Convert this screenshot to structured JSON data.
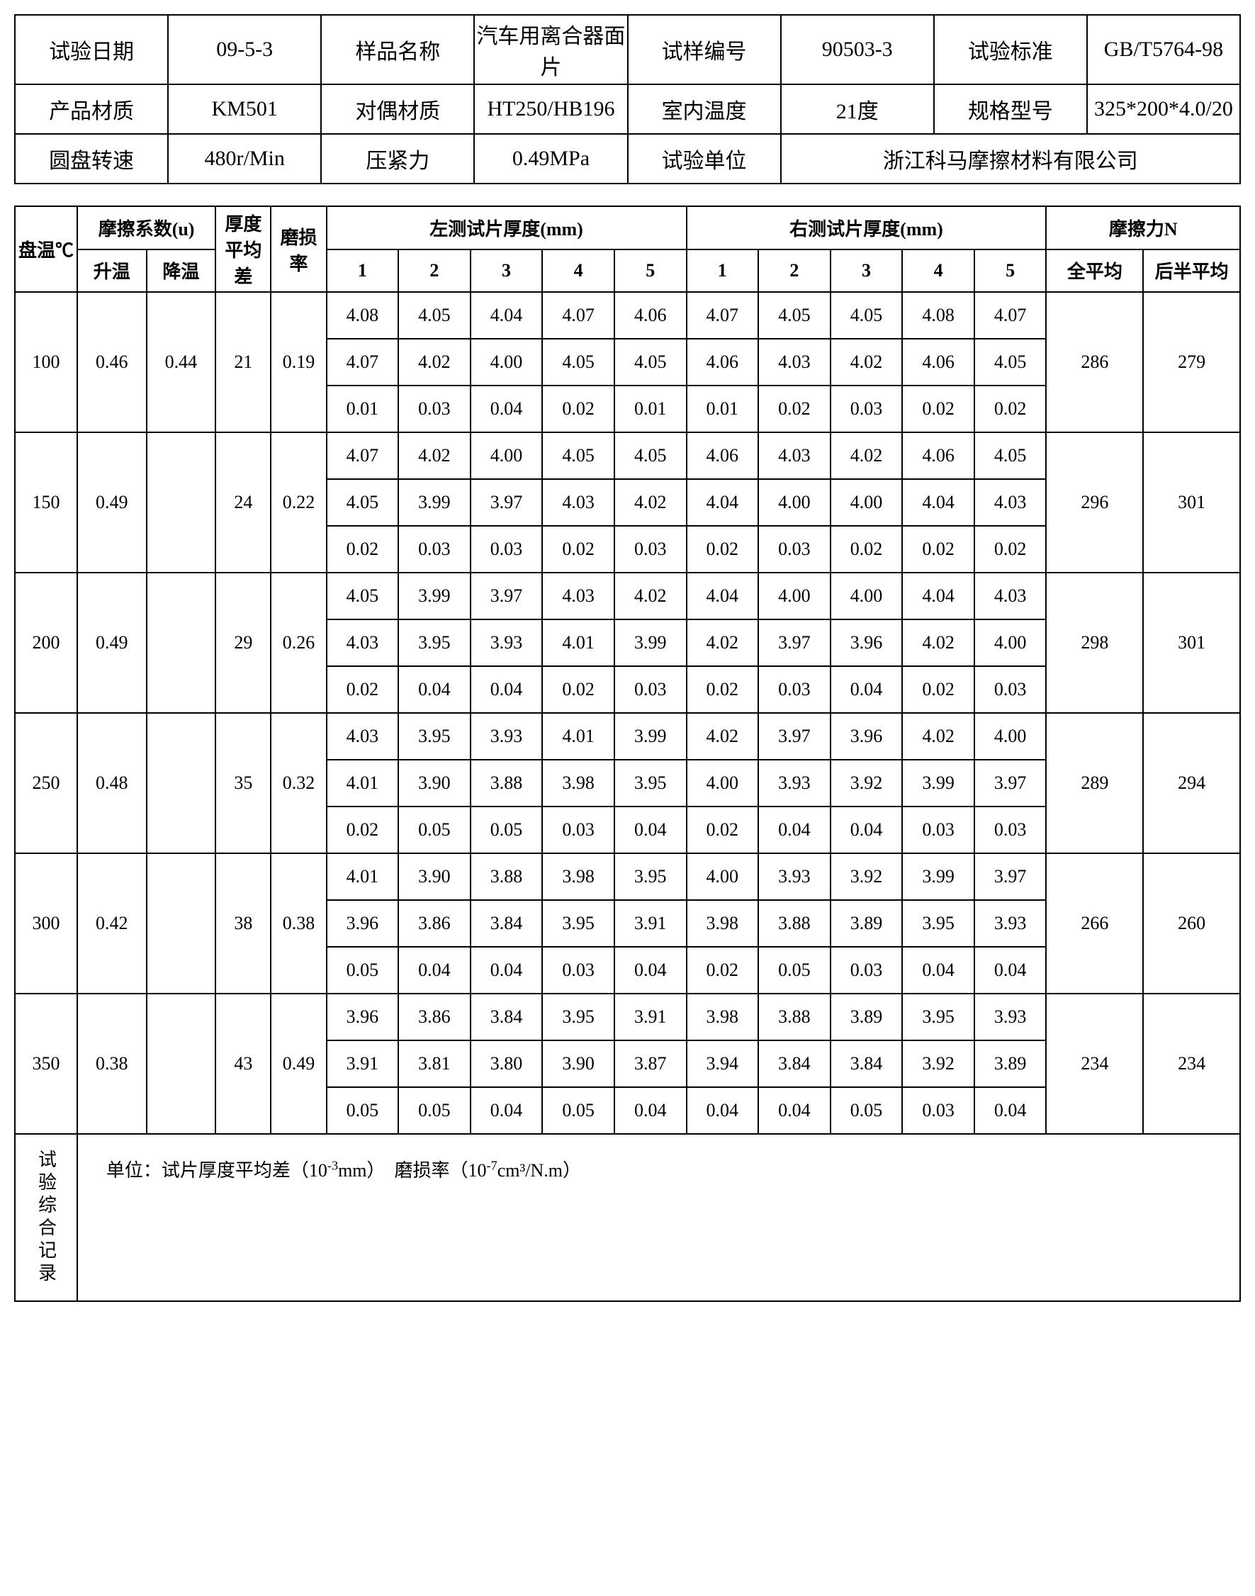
{
  "header": {
    "labels": {
      "test_date": "试验日期",
      "sample_name": "样品名称",
      "sample_no": "试样编号",
      "test_std": "试验标准",
      "material": "产品材质",
      "pair_material": "对偶材质",
      "room_temp": "室内温度",
      "spec": "规格型号",
      "disc_speed": "圆盘转速",
      "press": "压紧力",
      "test_unit": "试验单位"
    },
    "values": {
      "test_date": "09-5-3",
      "sample_name": "汽车用离合器面片",
      "sample_no": "90503-3",
      "test_std": "GB/T5764-98",
      "material": "KM501",
      "pair_material": "HT250/HB196",
      "room_temp": "21度",
      "spec": "325*200*4.0/20",
      "disc_speed": "480r/Min",
      "press": "0.49MPa",
      "test_unit": "浙江科马摩擦材料有限公司"
    }
  },
  "data_head": {
    "disc_temp": "盘温℃",
    "fric_coef": "摩擦系数(u)",
    "heat": "升温",
    "cool": "降温",
    "thick_diff": "厚度平均差",
    "wear": "磨损率",
    "left": "左测试片厚度(mm)",
    "right": "右测试片厚度(mm)",
    "c1": "1",
    "c2": "2",
    "c3": "3",
    "c4": "4",
    "c5": "5",
    "fric_force": "摩擦力N",
    "full_avg": "全平均",
    "half_avg": "后半平均"
  },
  "rows": [
    {
      "temp": "100",
      "heat": "0.46",
      "cool": "0.44",
      "diff": "21",
      "wear": "0.19",
      "l": [
        [
          "4.08",
          "4.05",
          "4.04",
          "4.07",
          "4.06"
        ],
        [
          "4.07",
          "4.02",
          "4.00",
          "4.05",
          "4.05"
        ],
        [
          "0.01",
          "0.03",
          "0.04",
          "0.02",
          "0.01"
        ]
      ],
      "r": [
        [
          "4.07",
          "4.05",
          "4.05",
          "4.08",
          "4.07"
        ],
        [
          "4.06",
          "4.03",
          "4.02",
          "4.06",
          "4.05"
        ],
        [
          "0.01",
          "0.02",
          "0.03",
          "0.02",
          "0.02"
        ]
      ],
      "fa": "286",
      "ha": "279"
    },
    {
      "temp": "150",
      "heat": "0.49",
      "cool": "",
      "diff": "24",
      "wear": "0.22",
      "l": [
        [
          "4.07",
          "4.02",
          "4.00",
          "4.05",
          "4.05"
        ],
        [
          "4.05",
          "3.99",
          "3.97",
          "4.03",
          "4.02"
        ],
        [
          "0.02",
          "0.03",
          "0.03",
          "0.02",
          "0.03"
        ]
      ],
      "r": [
        [
          "4.06",
          "4.03",
          "4.02",
          "4.06",
          "4.05"
        ],
        [
          "4.04",
          "4.00",
          "4.00",
          "4.04",
          "4.03"
        ],
        [
          "0.02",
          "0.03",
          "0.02",
          "0.02",
          "0.02"
        ]
      ],
      "fa": "296",
      "ha": "301"
    },
    {
      "temp": "200",
      "heat": "0.49",
      "cool": "",
      "diff": "29",
      "wear": "0.26",
      "l": [
        [
          "4.05",
          "3.99",
          "3.97",
          "4.03",
          "4.02"
        ],
        [
          "4.03",
          "3.95",
          "3.93",
          "4.01",
          "3.99"
        ],
        [
          "0.02",
          "0.04",
          "0.04",
          "0.02",
          "0.03"
        ]
      ],
      "r": [
        [
          "4.04",
          "4.00",
          "4.00",
          "4.04",
          "4.03"
        ],
        [
          "4.02",
          "3.97",
          "3.96",
          "4.02",
          "4.00"
        ],
        [
          "0.02",
          "0.03",
          "0.04",
          "0.02",
          "0.03"
        ]
      ],
      "fa": "298",
      "ha": "301"
    },
    {
      "temp": "250",
      "heat": "0.48",
      "cool": "",
      "diff": "35",
      "wear": "0.32",
      "l": [
        [
          "4.03",
          "3.95",
          "3.93",
          "4.01",
          "3.99"
        ],
        [
          "4.01",
          "3.90",
          "3.88",
          "3.98",
          "3.95"
        ],
        [
          "0.02",
          "0.05",
          "0.05",
          "0.03",
          "0.04"
        ]
      ],
      "r": [
        [
          "4.02",
          "3.97",
          "3.96",
          "4.02",
          "4.00"
        ],
        [
          "4.00",
          "3.93",
          "3.92",
          "3.99",
          "3.97"
        ],
        [
          "0.02",
          "0.04",
          "0.04",
          "0.03",
          "0.03"
        ]
      ],
      "fa": "289",
      "ha": "294"
    },
    {
      "temp": "300",
      "heat": "0.42",
      "cool": "",
      "diff": "38",
      "wear": "0.38",
      "l": [
        [
          "4.01",
          "3.90",
          "3.88",
          "3.98",
          "3.95"
        ],
        [
          "3.96",
          "3.86",
          "3.84",
          "3.95",
          "3.91"
        ],
        [
          "0.05",
          "0.04",
          "0.04",
          "0.03",
          "0.04"
        ]
      ],
      "r": [
        [
          "4.00",
          "3.93",
          "3.92",
          "3.99",
          "3.97"
        ],
        [
          "3.98",
          "3.88",
          "3.89",
          "3.95",
          "3.93"
        ],
        [
          "0.02",
          "0.05",
          "0.03",
          "0.04",
          "0.04"
        ]
      ],
      "fa": "266",
      "ha": "260"
    },
    {
      "temp": "350",
      "heat": "0.38",
      "cool": "",
      "diff": "43",
      "wear": "0.49",
      "l": [
        [
          "3.96",
          "3.86",
          "3.84",
          "3.95",
          "3.91"
        ],
        [
          "3.91",
          "3.81",
          "3.80",
          "3.90",
          "3.87"
        ],
        [
          "0.05",
          "0.05",
          "0.04",
          "0.05",
          "0.04"
        ]
      ],
      "r": [
        [
          "3.98",
          "3.88",
          "3.89",
          "3.95",
          "3.93"
        ],
        [
          "3.94",
          "3.84",
          "3.84",
          "3.92",
          "3.89"
        ],
        [
          "0.04",
          "0.04",
          "0.05",
          "0.03",
          "0.04"
        ]
      ],
      "fa": "234",
      "ha": "234"
    }
  ],
  "notes": {
    "label": "试验综合记录",
    "text_prefix": "单位：试片厚度平均差（10",
    "exp1": "-3",
    "text_mid": "mm）　磨损率（10",
    "exp2": "-7",
    "text_suffix": "cm³/N.m）"
  }
}
